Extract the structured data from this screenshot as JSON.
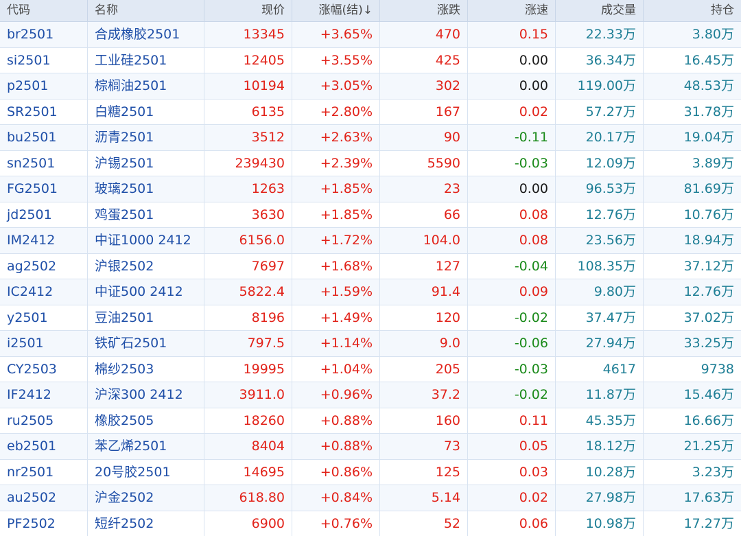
{
  "colors": {
    "up": "#e2231a",
    "down": "#1a8a1a",
    "flat": "#1a1a1a",
    "link": "#1f4fa8",
    "volume": "#1f7f96",
    "header_bg": "#e1e9f4"
  },
  "table": {
    "headers": [
      "代码",
      "名称",
      "现价",
      "涨幅(结)↓",
      "涨跌",
      "涨速",
      "成交量",
      "持仓"
    ],
    "rows": [
      {
        "code": "br2501",
        "name": "合成橡胶2501",
        "price": "13345",
        "pct": "+3.65%",
        "change": "470",
        "speed": "0.15",
        "speed_dir": "up",
        "volume": "22.33万",
        "oi": "3.80万"
      },
      {
        "code": "si2501",
        "name": "工业硅2501",
        "price": "12405",
        "pct": "+3.55%",
        "change": "425",
        "speed": "0.00",
        "speed_dir": "flat",
        "volume": "36.34万",
        "oi": "16.45万"
      },
      {
        "code": "p2501",
        "name": "棕榈油2501",
        "price": "10194",
        "pct": "+3.05%",
        "change": "302",
        "speed": "0.00",
        "speed_dir": "flat",
        "volume": "119.00万",
        "oi": "48.53万"
      },
      {
        "code": "SR2501",
        "name": "白糖2501",
        "price": "6135",
        "pct": "+2.80%",
        "change": "167",
        "speed": "0.02",
        "speed_dir": "up",
        "volume": "57.27万",
        "oi": "31.78万"
      },
      {
        "code": "bu2501",
        "name": "沥青2501",
        "price": "3512",
        "pct": "+2.63%",
        "change": "90",
        "speed": "-0.11",
        "speed_dir": "down",
        "volume": "20.17万",
        "oi": "19.04万"
      },
      {
        "code": "sn2501",
        "name": "沪锡2501",
        "price": "239430",
        "pct": "+2.39%",
        "change": "5590",
        "speed": "-0.03",
        "speed_dir": "down",
        "volume": "12.09万",
        "oi": "3.89万"
      },
      {
        "code": "FG2501",
        "name": "玻璃2501",
        "price": "1263",
        "pct": "+1.85%",
        "change": "23",
        "speed": "0.00",
        "speed_dir": "flat",
        "volume": "96.53万",
        "oi": "81.69万"
      },
      {
        "code": "jd2501",
        "name": "鸡蛋2501",
        "price": "3630",
        "pct": "+1.85%",
        "change": "66",
        "speed": "0.08",
        "speed_dir": "up",
        "volume": "12.76万",
        "oi": "10.76万"
      },
      {
        "code": "IM2412",
        "name": "中证1000 2412",
        "price": "6156.0",
        "pct": "+1.72%",
        "change": "104.0",
        "speed": "0.08",
        "speed_dir": "up",
        "volume": "23.56万",
        "oi": "18.94万"
      },
      {
        "code": "ag2502",
        "name": "沪银2502",
        "price": "7697",
        "pct": "+1.68%",
        "change": "127",
        "speed": "-0.04",
        "speed_dir": "down",
        "volume": "108.35万",
        "oi": "37.12万"
      },
      {
        "code": "IC2412",
        "name": "中证500 2412",
        "price": "5822.4",
        "pct": "+1.59%",
        "change": "91.4",
        "speed": "0.09",
        "speed_dir": "up",
        "volume": "9.80万",
        "oi": "12.76万"
      },
      {
        "code": "y2501",
        "name": "豆油2501",
        "price": "8196",
        "pct": "+1.49%",
        "change": "120",
        "speed": "-0.02",
        "speed_dir": "down",
        "volume": "37.47万",
        "oi": "37.02万"
      },
      {
        "code": "i2501",
        "name": "铁矿石2501",
        "price": "797.5",
        "pct": "+1.14%",
        "change": "9.0",
        "speed": "-0.06",
        "speed_dir": "down",
        "volume": "27.94万",
        "oi": "33.25万"
      },
      {
        "code": "CY2503",
        "name": "棉纱2503",
        "price": "19995",
        "pct": "+1.04%",
        "change": "205",
        "speed": "-0.03",
        "speed_dir": "down",
        "volume": "4617",
        "oi": "9738"
      },
      {
        "code": "IF2412",
        "name": "沪深300 2412",
        "price": "3911.0",
        "pct": "+0.96%",
        "change": "37.2",
        "speed": "-0.02",
        "speed_dir": "down",
        "volume": "11.87万",
        "oi": "15.46万"
      },
      {
        "code": "ru2505",
        "name": "橡胶2505",
        "price": "18260",
        "pct": "+0.88%",
        "change": "160",
        "speed": "0.11",
        "speed_dir": "up",
        "volume": "45.35万",
        "oi": "16.66万"
      },
      {
        "code": "eb2501",
        "name": "苯乙烯2501",
        "price": "8404",
        "pct": "+0.88%",
        "change": "73",
        "speed": "0.05",
        "speed_dir": "up",
        "volume": "18.12万",
        "oi": "21.25万"
      },
      {
        "code": "nr2501",
        "name": "20号胶2501",
        "price": "14695",
        "pct": "+0.86%",
        "change": "125",
        "speed": "0.03",
        "speed_dir": "up",
        "volume": "10.28万",
        "oi": "3.23万"
      },
      {
        "code": "au2502",
        "name": "沪金2502",
        "price": "618.80",
        "pct": "+0.84%",
        "change": "5.14",
        "speed": "0.02",
        "speed_dir": "up",
        "volume": "27.98万",
        "oi": "17.63万"
      },
      {
        "code": "PF2502",
        "name": "短纤2502",
        "price": "6900",
        "pct": "+0.76%",
        "change": "52",
        "speed": "0.06",
        "speed_dir": "up",
        "volume": "10.98万",
        "oi": "17.27万"
      }
    ]
  }
}
